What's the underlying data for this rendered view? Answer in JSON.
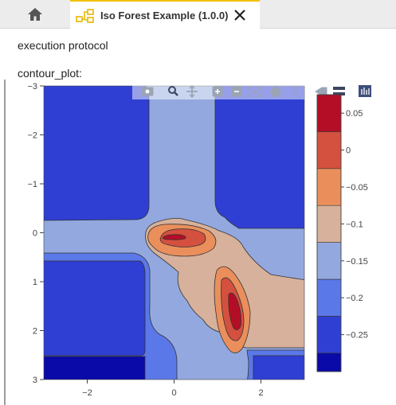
{
  "tabs": {
    "home_icon": "home-icon",
    "active": {
      "title": "Iso Forest Example (1.0.0)",
      "icon": "workflow-icon",
      "close_icon": "close-icon"
    }
  },
  "sections": {
    "execution_protocol": "execution protocol",
    "contour_plot": "contour_plot:"
  },
  "toolbar": {
    "icons": [
      "camera-icon",
      "zoom-icon",
      "pan-icon",
      "zoom-in-icon",
      "zoom-out-icon",
      "autoscale-icon",
      "reset-axes-icon",
      "spike-lines-icon",
      "compare-hover-icon",
      "show-closest-icon",
      "plotly-logo-icon"
    ]
  },
  "chart_data": {
    "type": "heatmap",
    "subtype": "contour",
    "x_ticks": [
      "−2",
      "0",
      "2"
    ],
    "y_ticks": [
      "−3",
      "−2",
      "−1",
      "0",
      "1",
      "2",
      "3"
    ],
    "xlim": [
      -3,
      3
    ],
    "ylim": [
      3,
      -3
    ],
    "colorbar": {
      "tick_labels": [
        "0.05",
        "0",
        "−0.05",
        "−0.1",
        "−0.15",
        "−0.2",
        "−0.25"
      ],
      "tick_values": [
        0.05,
        0,
        -0.05,
        -0.1,
        -0.15,
        -0.2,
        -0.25
      ],
      "range": [
        -0.3,
        0.075
      ]
    },
    "levels": [
      {
        "lo": -0.3,
        "hi": -0.275,
        "color": "#0a0aa8"
      },
      {
        "lo": -0.275,
        "hi": -0.225,
        "color": "#2f3fd3"
      },
      {
        "lo": -0.225,
        "hi": -0.175,
        "color": "#5b78e8"
      },
      {
        "lo": -0.175,
        "hi": -0.125,
        "color": "#93a8de"
      },
      {
        "lo": -0.125,
        "hi": -0.075,
        "color": "#d7b19b"
      },
      {
        "lo": -0.075,
        "hi": -0.025,
        "color": "#ea8f5c"
      },
      {
        "lo": -0.025,
        "hi": 0.025,
        "color": "#d4503f"
      },
      {
        "lo": 0.025,
        "hi": 0.075,
        "color": "#b40e26"
      }
    ]
  }
}
